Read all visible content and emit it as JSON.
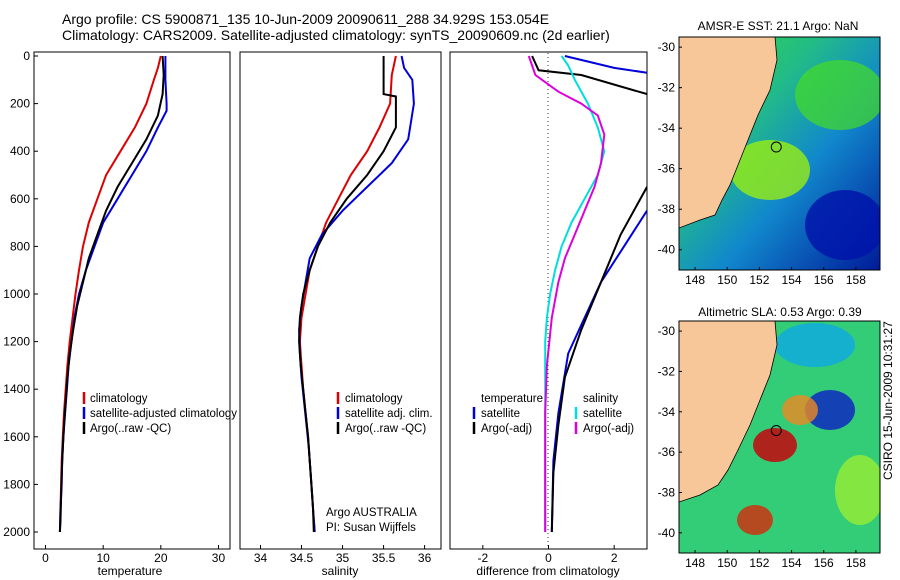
{
  "header": {
    "line1": "Argo profile: CS 5900871_135 10-Jun-2009 20090611_288 34.929S 153.054E",
    "line2": "Climatology: CARS2009. Satellite-adjusted climatology: synTS_20090609.nc (2d earlier)"
  },
  "chart_data": [
    {
      "id": "temperature-panel",
      "type": "line",
      "xlabel": "temperature",
      "xlim": [
        -2,
        32
      ],
      "xticks": [
        0,
        10,
        20,
        30
      ],
      "ylim": [
        2050,
        0
      ],
      "yticks": [
        0,
        200,
        400,
        600,
        800,
        1000,
        1200,
        1400,
        1600,
        1800,
        2000
      ],
      "legend": [
        "climatology",
        "satellite-adjusted climatology",
        "Argo(..raw -QC)"
      ],
      "series": [
        {
          "name": "climatology",
          "color": "#dd0000",
          "points": [
            [
              20,
              0
            ],
            [
              19.5,
              50
            ],
            [
              18.8,
              100
            ],
            [
              17.5,
              200
            ],
            [
              15.5,
              300
            ],
            [
              13,
              400
            ],
            [
              10.5,
              500
            ],
            [
              9,
              600
            ],
            [
              7.5,
              700
            ],
            [
              6.5,
              800
            ],
            [
              5.8,
              900
            ],
            [
              5.2,
              1000
            ],
            [
              4.7,
              1100
            ],
            [
              4.2,
              1200
            ],
            [
              3.8,
              1300
            ],
            [
              3.5,
              1400
            ],
            [
              3.2,
              1500
            ],
            [
              3,
              1600
            ],
            [
              2.8,
              1700
            ],
            [
              2.7,
              1800
            ],
            [
              2.6,
              1900
            ],
            [
              2.5,
              2000
            ]
          ]
        },
        {
          "name": "satellite-adjusted climatology",
          "color": "#0000dd",
          "points": [
            [
              20.8,
              0
            ],
            [
              20.8,
              100
            ],
            [
              21,
              200
            ],
            [
              21,
              230
            ],
            [
              19.5,
              300
            ],
            [
              17.5,
              400
            ],
            [
              15,
              500
            ],
            [
              12.5,
              600
            ],
            [
              10,
              700
            ],
            [
              8.5,
              800
            ],
            [
              7,
              900
            ],
            [
              5.8,
              1000
            ],
            [
              5,
              1100
            ],
            [
              4.5,
              1200
            ],
            [
              4,
              1300
            ],
            [
              3.7,
              1400
            ],
            [
              3.4,
              1500
            ],
            [
              3.1,
              1600
            ],
            [
              2.9,
              1700
            ],
            [
              2.8,
              1800
            ],
            [
              2.6,
              1900
            ],
            [
              2.5,
              2000
            ]
          ]
        },
        {
          "name": "Argo(..raw -QC)",
          "color": "#000000",
          "points": [
            [
              20.3,
              0
            ],
            [
              20.5,
              80
            ],
            [
              20.3,
              160
            ],
            [
              19.5,
              250
            ],
            [
              17.5,
              350
            ],
            [
              15,
              450
            ],
            [
              12.5,
              550
            ],
            [
              10.5,
              650
            ],
            [
              9,
              750
            ],
            [
              7.5,
              850
            ],
            [
              6.5,
              950
            ],
            [
              5.5,
              1050
            ],
            [
              4.8,
              1150
            ],
            [
              4.2,
              1250
            ],
            [
              3.8,
              1350
            ],
            [
              3.5,
              1450
            ],
            [
              3.2,
              1550
            ],
            [
              3,
              1650
            ],
            [
              2.8,
              1750
            ],
            [
              2.7,
              1850
            ],
            [
              2.6,
              1950
            ],
            [
              2.5,
              2000
            ]
          ]
        }
      ]
    },
    {
      "id": "salinity-panel",
      "type": "line",
      "xlabel": "salinity",
      "xlim": [
        33.75,
        36.2
      ],
      "xticks": [
        34,
        34.5,
        35,
        35.5,
        36
      ],
      "ylim": [
        2050,
        0
      ],
      "legend": [
        "climatology",
        "satellite adj. clim.",
        "Argo(..raw -QC)"
      ],
      "annotation": [
        "Argo AUSTRALIA",
        "PI: Susan Wijffels"
      ],
      "series": [
        {
          "name": "climatology",
          "color": "#dd0000",
          "points": [
            [
              35.65,
              0
            ],
            [
              35.6,
              80
            ],
            [
              35.58,
              200
            ],
            [
              35.45,
              300
            ],
            [
              35.3,
              400
            ],
            [
              35.1,
              500
            ],
            [
              34.95,
              600
            ],
            [
              34.8,
              700
            ],
            [
              34.7,
              800
            ],
            [
              34.6,
              900
            ],
            [
              34.55,
              1000
            ],
            [
              34.5,
              1100
            ],
            [
              34.48,
              1200
            ],
            [
              34.5,
              1300
            ],
            [
              34.52,
              1400
            ],
            [
              34.55,
              1500
            ],
            [
              34.58,
              1600
            ],
            [
              34.6,
              1700
            ],
            [
              34.62,
              1800
            ],
            [
              34.64,
              1900
            ],
            [
              34.66,
              2000
            ]
          ]
        },
        {
          "name": "satellite adj. clim.",
          "color": "#0000dd",
          "points": [
            [
              35.72,
              0
            ],
            [
              35.75,
              50
            ],
            [
              35.85,
              100
            ],
            [
              35.87,
              200
            ],
            [
              35.8,
              350
            ],
            [
              35.6,
              450
            ],
            [
              35.3,
              550
            ],
            [
              35,
              650
            ],
            [
              34.75,
              750
            ],
            [
              34.6,
              850
            ],
            [
              34.55,
              950
            ],
            [
              34.5,
              1050
            ],
            [
              34.47,
              1150
            ],
            [
              34.48,
              1250
            ],
            [
              34.5,
              1350
            ],
            [
              34.53,
              1450
            ],
            [
              34.56,
              1550
            ],
            [
              34.59,
              1650
            ],
            [
              34.61,
              1750
            ],
            [
              34.63,
              1850
            ],
            [
              34.65,
              1950
            ],
            [
              34.66,
              2000
            ]
          ]
        },
        {
          "name": "Argo(..raw -QC)",
          "color": "#000000",
          "points": [
            [
              35.5,
              0
            ],
            [
              35.5,
              160
            ],
            [
              35.65,
              170
            ],
            [
              35.65,
              300
            ],
            [
              35.5,
              400
            ],
            [
              35.3,
              500
            ],
            [
              35.05,
              600
            ],
            [
              34.85,
              700
            ],
            [
              34.7,
              800
            ],
            [
              34.6,
              900
            ],
            [
              34.52,
              1000
            ],
            [
              34.48,
              1100
            ],
            [
              34.47,
              1200
            ],
            [
              34.49,
              1300
            ],
            [
              34.52,
              1400
            ],
            [
              34.55,
              1500
            ],
            [
              34.58,
              1600
            ],
            [
              34.6,
              1700
            ],
            [
              34.62,
              1800
            ],
            [
              34.64,
              1900
            ],
            [
              34.65,
              2000
            ]
          ]
        }
      ]
    },
    {
      "id": "difference-panel",
      "type": "line",
      "xlabel": "difference from climatology",
      "xlim": [
        -3,
        3
      ],
      "xticks": [
        -2,
        0,
        2
      ],
      "ylim": [
        2050,
        0
      ],
      "legend_headers": [
        "temperature",
        "salinity"
      ],
      "legend": [
        "satellite",
        "Argo(-adj)",
        "satellite",
        "Argo(-adj)"
      ],
      "series": [
        {
          "name": "temperature satellite",
          "color": "#0000dd",
          "points": [
            [
              0.5,
              0
            ],
            [
              2,
              50
            ],
            [
              3,
              70
            ]
          ]
        },
        {
          "name": "temperature Argo(-adj)",
          "color": "#000000",
          "points": [
            [
              -0.5,
              0
            ],
            [
              -0.3,
              60
            ],
            [
              1,
              80
            ],
            [
              3,
              160
            ]
          ]
        },
        {
          "name": "salinity satellite",
          "color": "#00dddd",
          "points": [
            [
              0.4,
              0
            ],
            [
              0.6,
              40
            ],
            [
              0.8,
              100
            ],
            [
              1.2,
              200
            ],
            [
              1.5,
              300
            ],
            [
              1.7,
              400
            ],
            [
              1.5,
              500
            ],
            [
              1.1,
              600
            ],
            [
              0.7,
              700
            ],
            [
              0.4,
              800
            ],
            [
              0.2,
              900
            ],
            [
              0.05,
              1000
            ],
            [
              -0.05,
              1100
            ],
            [
              -0.1,
              1200
            ],
            [
              -0.1,
              1400
            ],
            [
              -0.1,
              1600
            ],
            [
              -0.1,
              1800
            ],
            [
              -0.1,
              2000
            ]
          ]
        },
        {
          "name": "salinity Argo(-adj)",
          "color": "#dd00dd",
          "points": [
            [
              -0.6,
              0
            ],
            [
              -0.4,
              80
            ],
            [
              0.3,
              150
            ],
            [
              1,
              200
            ],
            [
              1.5,
              250
            ],
            [
              1.7,
              330
            ],
            [
              1.6,
              450
            ],
            [
              1.4,
              550
            ],
            [
              1.1,
              650
            ],
            [
              0.8,
              750
            ],
            [
              0.5,
              850
            ],
            [
              0.3,
              950
            ],
            [
              0.1,
              1100
            ],
            [
              -0.05,
              1300
            ],
            [
              -0.1,
              1500
            ],
            [
              -0.1,
              1700
            ],
            [
              -0.1,
              2000
            ]
          ]
        },
        {
          "name": "satellite - temperature (deep)",
          "color": "#0000dd",
          "points": [
            [
              3,
              650
            ],
            [
              2.3,
              800
            ],
            [
              1.6,
              950
            ],
            [
              1.1,
              1100
            ],
            [
              0.6,
              1250
            ],
            [
              0.3,
              1500
            ],
            [
              0.15,
              1700
            ],
            [
              0.1,
              2000
            ]
          ]
        },
        {
          "name": "Argo - temperature (deep)",
          "color": "#000000",
          "points": [
            [
              3,
              550
            ],
            [
              2.2,
              750
            ],
            [
              1.6,
              950
            ],
            [
              1,
              1150
            ],
            [
              0.5,
              1350
            ],
            [
              0.3,
              1550
            ],
            [
              0.15,
              1750
            ],
            [
              0.1,
              2000
            ]
          ]
        }
      ]
    },
    {
      "id": "sst-map",
      "type": "heatmap",
      "title": "AMSR-E SST: 21.1 Argo: NaN",
      "xticks": [
        148,
        150,
        152,
        154,
        156,
        158
      ],
      "yticks": [
        -30,
        -32,
        -34,
        -36,
        -38,
        -40
      ],
      "xlim": [
        147,
        159.5
      ],
      "ylim": [
        -41,
        -29.5
      ],
      "argo_position": [
        153.05,
        -34.93
      ]
    },
    {
      "id": "sla-map",
      "type": "heatmap",
      "title": "Altimetric SLA: 0.53 Argo: 0.39",
      "xticks": [
        148,
        150,
        152,
        154,
        156,
        158
      ],
      "yticks": [
        -30,
        -32,
        -34,
        -36,
        -38,
        -40
      ],
      "xlim": [
        147,
        159.5
      ],
      "ylim": [
        -41,
        -29.5
      ],
      "argo_position": [
        153.05,
        -34.93
      ]
    }
  ],
  "credit": "CSIRO 15-Jun-2009 10:31:27"
}
